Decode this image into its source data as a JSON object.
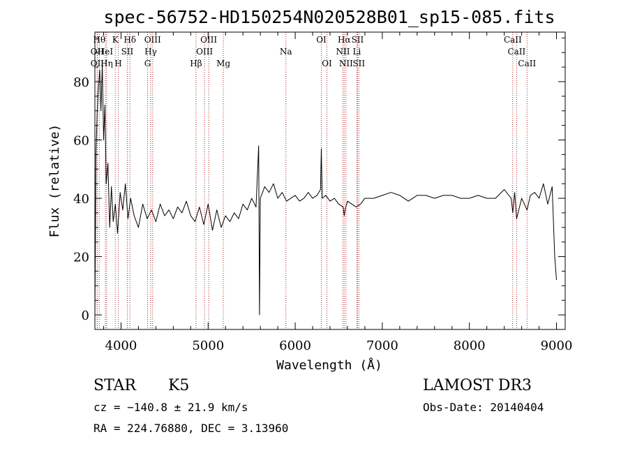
{
  "chart_data": {
    "type": "line",
    "title": "spec-56752-HD150254N020528B01_sp15-085.fits",
    "xlabel": "Wavelength (Å)",
    "ylabel": "Flux (relative)",
    "xlim": [
      3700,
      9100
    ],
    "ylim": [
      -5,
      97
    ],
    "x_ticks": [
      4000,
      5000,
      6000,
      7000,
      8000,
      9000
    ],
    "y_ticks": [
      0,
      20,
      40,
      60,
      80
    ],
    "series": [
      {
        "x": [
          3700,
          3712,
          3725,
          3740,
          3755,
          3770,
          3785,
          3800,
          3815,
          3830,
          3850,
          3870,
          3890,
          3910,
          3935,
          3960,
          3990,
          4020,
          4050,
          4080,
          4110,
          4150,
          4200,
          4250,
          4300,
          4350,
          4400,
          4450,
          4500,
          4550,
          4600,
          4650,
          4700,
          4750,
          4800,
          4850,
          4900,
          4950,
          5000,
          5050,
          5100,
          5150,
          5200,
          5250,
          5300,
          5350,
          5400,
          5450,
          5500,
          5550,
          5580,
          5590,
          5600,
          5650,
          5700,
          5750,
          5800,
          5850,
          5900,
          5950,
          6000,
          6050,
          6100,
          6150,
          6200,
          6250,
          6290,
          6300,
          6310,
          6350,
          6400,
          6450,
          6500,
          6550,
          6563,
          6580,
          6600,
          6650,
          6700,
          6750,
          6800,
          6900,
          7000,
          7100,
          7200,
          7300,
          7400,
          7500,
          7600,
          7700,
          7800,
          7900,
          8000,
          8100,
          8200,
          8300,
          8400,
          8480,
          8498,
          8520,
          8542,
          8600,
          8662,
          8700,
          8750,
          8800,
          8850,
          8900,
          8950,
          8980,
          9000
        ],
        "y": [
          0,
          55,
          68,
          78,
          84,
          70,
          86,
          60,
          72,
          45,
          52,
          30,
          44,
          32,
          38,
          28,
          42,
          36,
          45,
          33,
          40,
          34,
          30,
          38,
          33,
          36,
          32,
          38,
          34,
          36,
          33,
          37,
          35,
          39,
          34,
          32,
          37,
          31,
          38,
          29,
          36,
          30,
          34,
          32,
          35,
          33,
          38,
          36,
          40,
          37,
          58,
          0,
          40,
          44,
          42,
          45,
          40,
          42,
          39,
          40,
          41,
          39,
          40,
          42,
          40,
          41,
          43,
          57,
          40,
          41,
          39,
          40,
          38,
          37,
          34,
          37,
          39,
          38,
          37,
          38,
          40,
          40,
          41,
          42,
          41,
          39,
          41,
          41,
          40,
          41,
          41,
          40,
          40,
          41,
          40,
          40,
          43,
          40,
          35,
          42,
          33,
          40,
          36,
          41,
          42,
          40,
          45,
          38,
          44,
          20,
          12
        ]
      }
    ],
    "spectral_lines": [
      {
        "label": "OII",
        "wl": 3727,
        "row": 3
      },
      {
        "label": "Hθ",
        "wl": 3750,
        "row": 1
      },
      {
        "label": "OII",
        "wl": 3727,
        "row": 2
      },
      {
        "label": "Hη",
        "wl": 3835,
        "row": 3
      },
      {
        "label": "HeI",
        "wl": 3820,
        "row": 2
      },
      {
        "label": "K",
        "wl": 3934,
        "row": 1
      },
      {
        "label": "H",
        "wl": 3968,
        "row": 3
      },
      {
        "label": "SII",
        "wl": 4072,
        "row": 2
      },
      {
        "label": "Hδ",
        "wl": 4102,
        "row": 1
      },
      {
        "label": "OIII",
        "wl": 4363,
        "row": 1
      },
      {
        "label": "Hγ",
        "wl": 4341,
        "row": 2
      },
      {
        "label": "G",
        "wl": 4305,
        "row": 3
      },
      {
        "label": "Hβ",
        "wl": 4861,
        "row": 3
      },
      {
        "label": "OIII",
        "wl": 5007,
        "row": 1
      },
      {
        "label": "OIII",
        "wl": 4959,
        "row": 2
      },
      {
        "label": "Mg",
        "wl": 5175,
        "row": 3
      },
      {
        "label": "Na",
        "wl": 5893,
        "row": 2
      },
      {
        "label": "OI",
        "wl": 6300,
        "row": 1
      },
      {
        "label": "OI",
        "wl": 6364,
        "row": 3
      },
      {
        "label": "Hα",
        "wl": 6563,
        "row": 1
      },
      {
        "label": "SII",
        "wl": 6716,
        "row": 1
      },
      {
        "label": "NII",
        "wl": 6548,
        "row": 2
      },
      {
        "label": "Li",
        "wl": 6708,
        "row": 2
      },
      {
        "label": "NII",
        "wl": 6583,
        "row": 3
      },
      {
        "label": "SII",
        "wl": 6731,
        "row": 3
      },
      {
        "label": "CaII",
        "wl": 8498,
        "row": 1
      },
      {
        "label": "CaII",
        "wl": 8542,
        "row": 2
      },
      {
        "label": "CaII",
        "wl": 8662,
        "row": 3
      }
    ],
    "line_color": "#000000",
    "marker_color": "#b22222"
  },
  "info": {
    "object_class": "STAR",
    "subclass": "K5",
    "redshift_text": "cz = −140.8 ± 21.9 km/s",
    "coords_text": "RA = 224.76880, DEC =   3.13960",
    "survey": "LAMOST DR3",
    "obs_date": "Obs-Date: 20140404"
  }
}
